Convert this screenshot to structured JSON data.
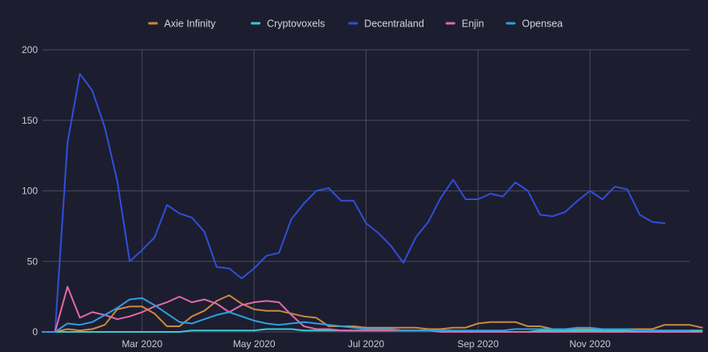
{
  "chart_data": {
    "type": "line",
    "title": "",
    "xlabel": "",
    "ylabel": "",
    "ylim": [
      0,
      200
    ],
    "yticks": [
      0,
      50,
      100,
      150,
      200
    ],
    "xtick_labels": [
      "Mar 2020",
      "May 2020",
      "Jul 2020",
      "Sep 2020",
      "Nov 2020"
    ],
    "x_index_range": [
      0,
      52
    ],
    "xtick_indices": [
      8,
      17,
      26,
      35,
      44
    ],
    "grid": true,
    "legend_position": "top-center",
    "series": [
      {
        "name": "Axie Infinity",
        "color": "#c98a3e",
        "values": [
          0,
          0,
          2,
          1,
          2,
          5,
          16,
          18,
          18,
          13,
          4,
          4,
          11,
          15,
          22,
          26,
          20,
          16,
          15,
          15,
          13,
          11,
          10,
          4,
          4,
          4,
          3,
          3,
          3,
          3,
          3,
          2,
          2,
          3,
          3,
          6,
          7,
          7,
          7,
          4,
          4,
          2,
          2,
          2,
          2,
          2,
          2,
          2,
          2,
          2,
          5,
          5,
          5,
          3
        ]
      },
      {
        "name": "Cryptovoxels",
        "color": "#3ec9d0",
        "values": [
          0,
          0,
          0,
          0,
          0,
          0,
          0,
          0,
          0,
          0,
          0,
          0,
          1,
          1,
          1,
          1,
          1,
          1,
          2,
          2,
          2,
          1,
          1,
          1,
          1,
          1,
          1,
          1,
          1,
          1,
          1,
          1,
          1,
          1,
          0,
          0,
          0,
          0,
          0,
          0,
          1,
          1,
          1,
          1,
          1,
          1,
          1,
          1,
          1,
          1,
          1,
          1,
          1,
          1
        ]
      },
      {
        "name": "Decentraland",
        "color": "#2f4fd8",
        "values": [
          0,
          0,
          134,
          183,
          171,
          145,
          107,
          50,
          58,
          67,
          90,
          84,
          81,
          71,
          46,
          45,
          38,
          45,
          54,
          56,
          80,
          91,
          100,
          102,
          93,
          93,
          77,
          70,
          61,
          49,
          67,
          78,
          95,
          108,
          94,
          94,
          98,
          96,
          106,
          100,
          83,
          82,
          85,
          93,
          100,
          94,
          103,
          101,
          83,
          78,
          77
        ]
      },
      {
        "name": "Enjin",
        "color": "#e06ba6",
        "values": [
          0,
          0,
          32,
          10,
          14,
          12,
          9,
          11,
          14,
          18,
          21,
          25,
          21,
          23,
          20,
          14,
          19,
          21,
          22,
          21,
          12,
          4,
          2,
          2,
          1,
          1,
          1,
          1,
          1,
          1,
          1,
          1,
          0,
          0,
          0,
          0,
          0,
          0,
          0,
          0,
          0,
          0,
          0,
          0,
          0,
          0,
          0,
          0,
          0,
          0,
          0,
          0,
          0,
          0
        ]
      },
      {
        "name": "Opensea",
        "color": "#2f9ee0",
        "values": [
          0,
          0,
          6,
          5,
          7,
          12,
          17,
          23,
          24,
          19,
          13,
          7,
          6,
          9,
          12,
          14,
          11,
          8,
          6,
          5,
          6,
          7,
          6,
          5,
          4,
          3,
          2,
          2,
          2,
          1,
          1,
          1,
          1,
          1,
          1,
          1,
          1,
          1,
          2,
          2,
          2,
          2,
          2,
          3,
          3,
          2,
          2,
          2,
          1,
          1,
          1,
          1,
          1
        ]
      }
    ]
  }
}
